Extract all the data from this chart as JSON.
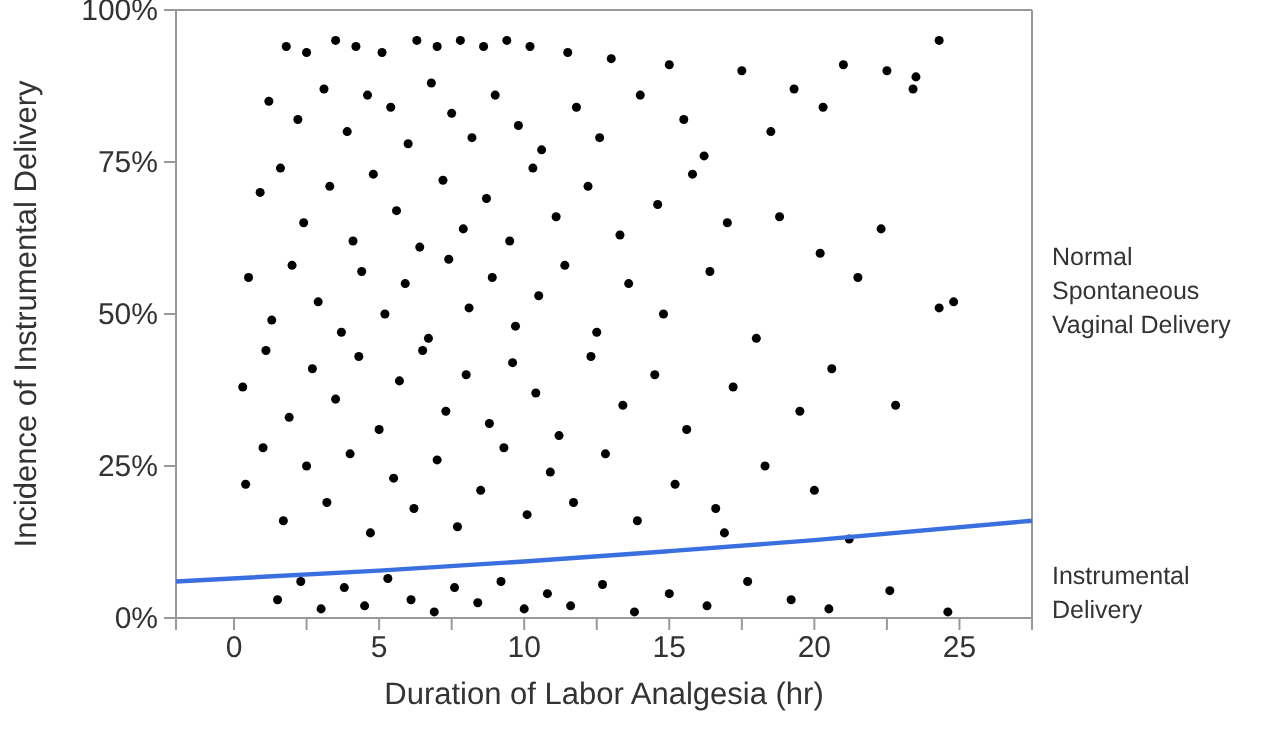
{
  "chart_data": {
    "type": "scatter",
    "xlabel": "Duration of Labor Analgesia (hr)",
    "ylabel": "Incidence of Instrumental Delivery",
    "xlim": [
      -2,
      27.5
    ],
    "xticks": [
      0,
      {
        "value": 2.5,
        "label": null
      },
      5,
      {
        "value": 7.5,
        "label": null
      },
      10,
      {
        "value": 12.5,
        "label": null
      },
      15,
      {
        "value": 17.5,
        "label": null
      },
      20,
      {
        "value": 22.5,
        "label": null
      },
      25,
      {
        "value": 27.5,
        "label": null
      }
    ],
    "ylim": [
      0,
      100
    ],
    "yticks": [
      {
        "value": 0,
        "label": "0%"
      },
      {
        "value": 25,
        "label": "25%"
      },
      {
        "value": 50,
        "label": "50%"
      },
      {
        "value": 75,
        "label": "75%"
      },
      {
        "value": 100,
        "label": "100%"
      }
    ],
    "annotations": [
      "Normal Spontaneous Vaginal Delivery",
      "Instrumental Delivery"
    ],
    "grid": false,
    "series": [
      {
        "color": "#000000",
        "marker": "circle",
        "x": [
          1.8,
          2.5,
          3.5,
          4.2,
          5.1,
          6.3,
          7,
          7.8,
          8.6,
          9.4,
          10.2,
          11.5,
          13,
          15,
          17.5,
          21,
          22.5,
          24.3,
          23.4,
          1.2,
          2.2,
          3.1,
          3.9,
          4.6,
          5.4,
          6,
          6.8,
          7.5,
          8.2,
          9,
          9.8,
          10.6,
          11.8,
          12.6,
          14,
          15.5,
          16.2,
          18.5,
          20.3,
          23.5,
          19.3,
          0.9,
          1.6,
          2.4,
          3.3,
          4.1,
          4.8,
          5.6,
          6.4,
          7.2,
          7.9,
          8.7,
          9.5,
          10.3,
          11.1,
          12.2,
          13.3,
          14.6,
          15.8,
          17,
          18.8,
          20.2,
          22.3,
          0.5,
          1.3,
          2,
          2.9,
          3.7,
          4.4,
          5.2,
          5.9,
          6.7,
          7.4,
          8.1,
          8.9,
          9.7,
          10.5,
          11.4,
          12.5,
          13.6,
          14.8,
          16.4,
          18,
          24.3,
          24.8,
          21.5,
          0.3,
          1.1,
          1.9,
          2.7,
          3.5,
          4.3,
          5,
          5.7,
          6.5,
          7.3,
          8,
          8.8,
          9.6,
          10.4,
          11.2,
          12.3,
          13.4,
          14.5,
          15.6,
          17.2,
          19.5,
          22.8,
          20.6,
          0.4,
          1,
          1.7,
          2.5,
          3.2,
          4,
          4.7,
          5.5,
          6.2,
          7,
          7.7,
          8.5,
          9.3,
          10.1,
          10.9,
          11.7,
          12.8,
          13.9,
          15.2,
          16.6,
          18.3,
          20,
          21.2,
          16.9,
          1.5,
          2.3,
          3,
          3.8,
          4.5,
          5.3,
          6.1,
          6.9,
          7.6,
          8.4,
          9.2,
          10,
          10.8,
          11.6,
          12.7,
          13.8,
          15,
          16.3,
          17.7,
          19.2,
          20.5,
          22.6,
          24.6
        ],
        "values": [
          94,
          93,
          95,
          94,
          93,
          95,
          94,
          95,
          94,
          95,
          94,
          93,
          92,
          91,
          90,
          91,
          90,
          95,
          87,
          85,
          82,
          87,
          80,
          86,
          84,
          78,
          88,
          83,
          79,
          86,
          81,
          77,
          84,
          79,
          86,
          82,
          76,
          80,
          84,
          89,
          87,
          70,
          74,
          65,
          71,
          62,
          73,
          67,
          61,
          72,
          64,
          69,
          62,
          74,
          66,
          71,
          63,
          68,
          73,
          65,
          66,
          60,
          64,
          56,
          49,
          58,
          52,
          47,
          57,
          50,
          55,
          46,
          59,
          51,
          56,
          48,
          53,
          58,
          47,
          55,
          50,
          57,
          46,
          51,
          52,
          56,
          38,
          44,
          33,
          41,
          36,
          43,
          31,
          39,
          44,
          34,
          40,
          32,
          42,
          37,
          30,
          43,
          35,
          40,
          31,
          38,
          34,
          35,
          41,
          22,
          28,
          16,
          25,
          19,
          27,
          14,
          23,
          18,
          26,
          15,
          21,
          28,
          17,
          24,
          19,
          27,
          16,
          22,
          18,
          25,
          21,
          13,
          14,
          3,
          6,
          1.5,
          5,
          2,
          6.5,
          3,
          1,
          5,
          2.5,
          6,
          1.5,
          4,
          2,
          5.5,
          1,
          4,
          2,
          6,
          3,
          1.5,
          4.5,
          1
        ]
      },
      {
        "type": "line",
        "color": "#3a6fe0",
        "x": [
          -2,
          5,
          10,
          15,
          20,
          27.5
        ],
        "values": [
          6,
          7.8,
          9.3,
          11,
          12.8,
          16
        ]
      }
    ]
  }
}
